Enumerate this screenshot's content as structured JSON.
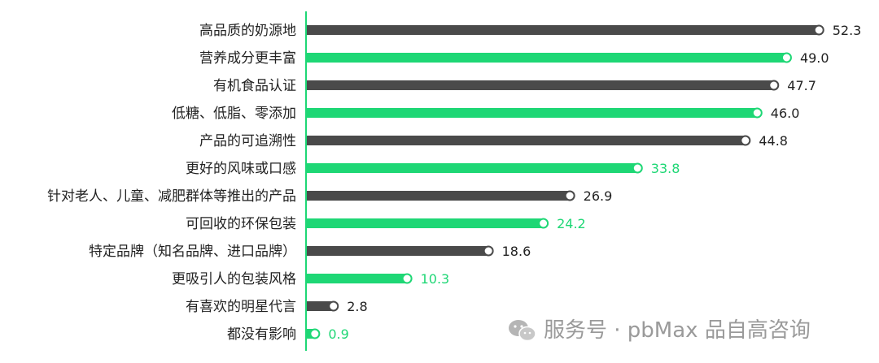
{
  "chart_data": {
    "type": "bar",
    "orientation": "horizontal",
    "categories": [
      "高品质的奶源地",
      "营养成分更丰富",
      "有机食品认证",
      "低糖、低脂、零添加",
      "产品的可追溯性",
      "更好的风味或口感",
      "针对老人、儿童、减肥群体等推出的产品",
      "可回收的环保包装",
      "特定品牌（知名品牌、进口品牌）",
      "更吸引人的包装风格",
      "有喜欢的明星代言",
      "都没有影响"
    ],
    "values": [
      52.3,
      49.0,
      47.7,
      46.0,
      44.8,
      33.8,
      26.9,
      24.2,
      18.6,
      10.3,
      2.8,
      0.9
    ],
    "value_labels": [
      "52.3",
      "49.0",
      "47.7",
      "46.0",
      "44.8",
      "33.8",
      "26.9",
      "24.2",
      "18.6",
      "10.3",
      "2.8",
      "0.9"
    ],
    "bar_colors": [
      "dark",
      "green",
      "dark",
      "green",
      "dark",
      "green",
      "dark",
      "green",
      "dark",
      "green",
      "dark",
      "green"
    ],
    "label_colors": [
      "dark",
      "dark",
      "dark",
      "dark",
      "dark",
      "green",
      "dark",
      "green",
      "dark",
      "green",
      "dark",
      "green"
    ],
    "xlim": [
      0,
      55
    ],
    "grid": false,
    "legend": "none",
    "title": "",
    "xlabel": "",
    "ylabel": ""
  },
  "colors": {
    "dark": "#4a4a4a",
    "green": "#1ed775",
    "dark_text": "#222222",
    "axis": "#1ed775"
  },
  "watermark": {
    "text": "服务号 · pbMax 品自高咨询",
    "icon": "wechat-icon"
  }
}
